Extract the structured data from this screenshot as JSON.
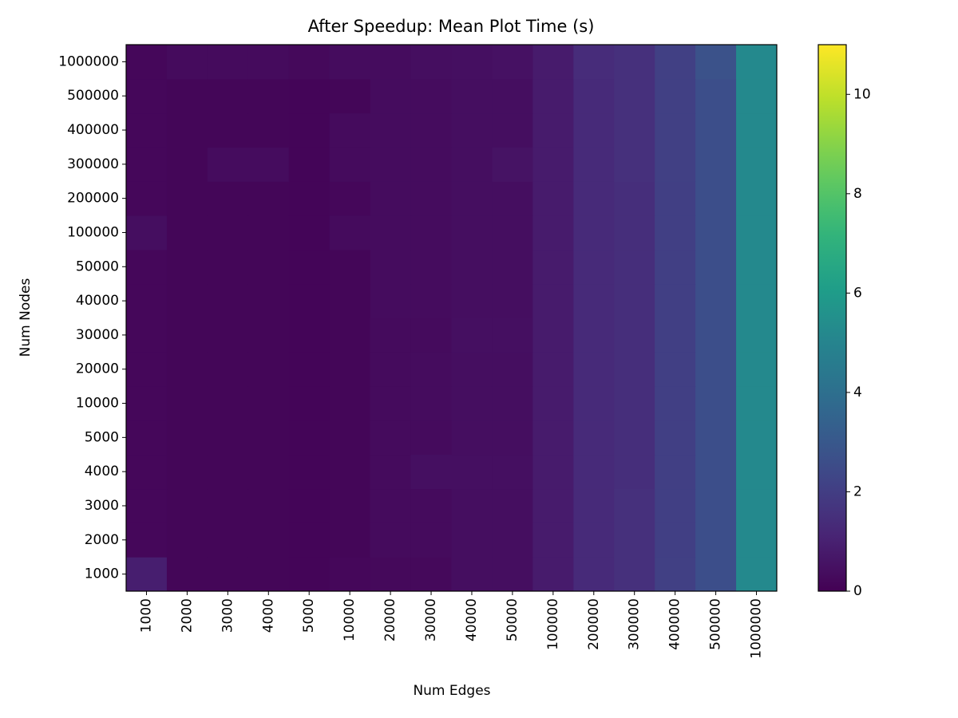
{
  "chart_data": {
    "type": "heatmap",
    "title": "After Speedup: Mean Plot Time (s)",
    "x_label": "Num Edges",
    "y_label": "Num Nodes",
    "x_categories": [
      "1000",
      "2000",
      "3000",
      "4000",
      "5000",
      "10000",
      "20000",
      "30000",
      "40000",
      "50000",
      "100000",
      "200000",
      "300000",
      "400000",
      "500000",
      "1000000"
    ],
    "y_categories": [
      "1000",
      "2000",
      "3000",
      "4000",
      "5000",
      "10000",
      "20000",
      "30000",
      "40000",
      "50000",
      "100000",
      "200000",
      "300000",
      "400000",
      "500000",
      "1000000"
    ],
    "values": [
      [
        0.9,
        0.15,
        0.15,
        0.15,
        0.12,
        0.2,
        0.25,
        0.25,
        0.4,
        0.4,
        0.8,
        1.3,
        1.5,
        2.1,
        2.6,
        5.2
      ],
      [
        0.2,
        0.15,
        0.15,
        0.15,
        0.12,
        0.15,
        0.3,
        0.3,
        0.4,
        0.4,
        0.8,
        1.3,
        1.5,
        2.05,
        2.6,
        5.2
      ],
      [
        0.2,
        0.15,
        0.15,
        0.15,
        0.12,
        0.15,
        0.3,
        0.3,
        0.4,
        0.4,
        0.8,
        1.3,
        1.5,
        2.05,
        2.6,
        5.2
      ],
      [
        0.2,
        0.15,
        0.15,
        0.15,
        0.12,
        0.15,
        0.3,
        0.45,
        0.45,
        0.45,
        0.8,
        1.3,
        1.45,
        2.05,
        2.6,
        5.2
      ],
      [
        0.2,
        0.15,
        0.15,
        0.15,
        0.12,
        0.15,
        0.3,
        0.3,
        0.4,
        0.4,
        0.8,
        1.3,
        1.45,
        2.05,
        2.6,
        5.2
      ],
      [
        0.2,
        0.15,
        0.15,
        0.15,
        0.12,
        0.15,
        0.3,
        0.35,
        0.4,
        0.4,
        0.8,
        1.3,
        1.45,
        2.05,
        2.6,
        5.2
      ],
      [
        0.2,
        0.15,
        0.15,
        0.15,
        0.12,
        0.15,
        0.3,
        0.35,
        0.4,
        0.4,
        0.8,
        1.3,
        1.45,
        2.05,
        2.6,
        5.2
      ],
      [
        0.2,
        0.15,
        0.15,
        0.15,
        0.12,
        0.15,
        0.3,
        0.3,
        0.45,
        0.45,
        0.8,
        1.3,
        1.45,
        2.05,
        2.6,
        5.2
      ],
      [
        0.2,
        0.15,
        0.15,
        0.15,
        0.12,
        0.15,
        0.35,
        0.35,
        0.4,
        0.4,
        0.8,
        1.3,
        1.45,
        2.05,
        2.6,
        5.2
      ],
      [
        0.2,
        0.15,
        0.15,
        0.15,
        0.12,
        0.15,
        0.35,
        0.35,
        0.4,
        0.4,
        0.8,
        1.3,
        1.45,
        2.05,
        2.6,
        5.2
      ],
      [
        0.4,
        0.15,
        0.15,
        0.15,
        0.12,
        0.3,
        0.35,
        0.35,
        0.4,
        0.4,
        0.8,
        1.3,
        1.45,
        2.05,
        2.6,
        5.2
      ],
      [
        0.2,
        0.15,
        0.15,
        0.15,
        0.12,
        0.2,
        0.35,
        0.35,
        0.4,
        0.4,
        0.8,
        1.3,
        1.45,
        2.05,
        2.6,
        5.2
      ],
      [
        0.2,
        0.15,
        0.35,
        0.35,
        0.12,
        0.3,
        0.35,
        0.35,
        0.4,
        0.55,
        0.8,
        1.3,
        1.5,
        2.1,
        2.6,
        5.2
      ],
      [
        0.2,
        0.15,
        0.15,
        0.15,
        0.12,
        0.3,
        0.35,
        0.35,
        0.4,
        0.4,
        0.8,
        1.3,
        1.5,
        2.1,
        2.6,
        5.2
      ],
      [
        0.2,
        0.15,
        0.15,
        0.15,
        0.12,
        0.15,
        0.35,
        0.35,
        0.4,
        0.4,
        0.8,
        1.3,
        1.5,
        2.1,
        2.6,
        5.2
      ],
      [
        0.2,
        0.3,
        0.3,
        0.3,
        0.25,
        0.35,
        0.35,
        0.4,
        0.45,
        0.5,
        0.8,
        1.35,
        1.5,
        2.1,
        2.75,
        5.2
      ]
    ],
    "colormap": "viridis",
    "clim": [
      0,
      11
    ],
    "cticks": [
      0,
      2,
      4,
      6,
      8,
      10
    ]
  }
}
